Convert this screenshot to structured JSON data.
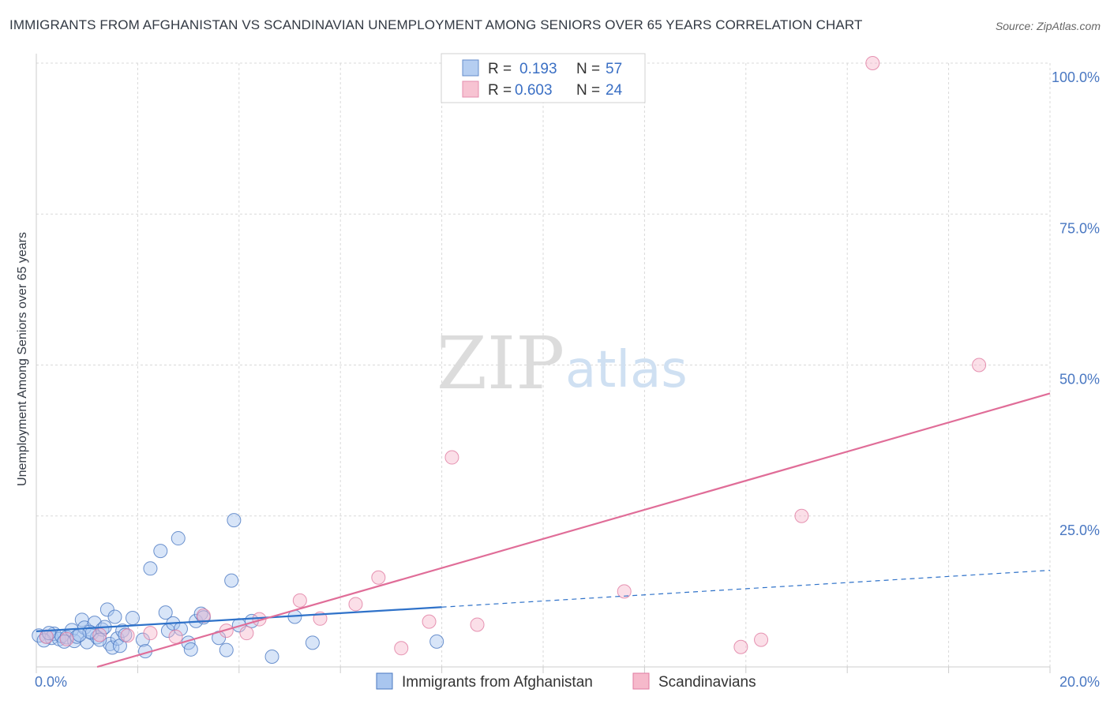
{
  "title": "IMMIGRANTS FROM AFGHANISTAN VS SCANDINAVIAN UNEMPLOYMENT AMONG SENIORS OVER 65 YEARS CORRELATION CHART",
  "source": "Source: ZipAtlas.com",
  "watermark": {
    "zip": "ZIP",
    "atlas": "atlas"
  },
  "colors": {
    "blue": "#4a78c2",
    "blue_fill": "#a9c6ef",
    "blue_line": "#2f72c9",
    "pink": "#e07aa0",
    "pink_fill": "#f6b9cb",
    "pink_line": "#e06d98",
    "grid": "#d9d9d9"
  },
  "legend": {
    "r_label": "R =",
    "n_label": "N =",
    "series": [
      {
        "r": "0.193",
        "n": "57"
      },
      {
        "r": "0.603",
        "n": "24"
      }
    ]
  },
  "chart_data": {
    "type": "scatter",
    "title": "IMMIGRANTS FROM AFGHANISTAN VS SCANDINAVIAN UNEMPLOYMENT AMONG SENIORS OVER 65 YEARS CORRELATION CHART",
    "xlabel": "",
    "ylabel": "Unemployment Among Seniors over 65 years",
    "xlim": [
      0,
      20
    ],
    "ylim": [
      0,
      100
    ],
    "x_ticks": [
      0,
      20
    ],
    "x_tick_labels": [
      "0.0%",
      "20.0%"
    ],
    "y_ticks": [
      25,
      50,
      75,
      100
    ],
    "y_tick_labels": [
      "25.0%",
      "50.0%",
      "75.0%",
      "100.0%"
    ],
    "grid": true,
    "series": [
      {
        "name": "Immigrants from Afghanistan",
        "color": "#4a78c2",
        "points": [
          [
            0.05,
            5.2
          ],
          [
            0.2,
            5.0
          ],
          [
            0.3,
            4.8
          ],
          [
            0.35,
            5.5
          ],
          [
            0.45,
            4.6
          ],
          [
            0.5,
            5.1
          ],
          [
            0.6,
            4.9
          ],
          [
            0.7,
            6.1
          ],
          [
            0.75,
            4.3
          ],
          [
            0.8,
            5.0
          ],
          [
            0.9,
            7.8
          ],
          [
            0.95,
            6.5
          ],
          [
            1.0,
            4.1
          ],
          [
            1.1,
            5.6
          ],
          [
            1.15,
            7.3
          ],
          [
            1.2,
            4.9
          ],
          [
            1.3,
            6.2
          ],
          [
            1.4,
            9.5
          ],
          [
            1.45,
            3.8
          ],
          [
            1.5,
            3.2
          ],
          [
            1.55,
            8.3
          ],
          [
            1.6,
            4.7
          ],
          [
            1.65,
            3.5
          ],
          [
            1.7,
            6.0
          ],
          [
            1.75,
            5.3
          ],
          [
            1.9,
            8.1
          ],
          [
            2.1,
            4.5
          ],
          [
            2.15,
            2.6
          ],
          [
            2.25,
            16.3
          ],
          [
            2.45,
            19.2
          ],
          [
            2.55,
            9.0
          ],
          [
            2.6,
            6.0
          ],
          [
            2.7,
            7.2
          ],
          [
            2.8,
            21.3
          ],
          [
            2.85,
            6.3
          ],
          [
            3.0,
            4.0
          ],
          [
            3.05,
            2.9
          ],
          [
            3.15,
            7.6
          ],
          [
            3.25,
            8.8
          ],
          [
            3.3,
            8.2
          ],
          [
            3.6,
            4.8
          ],
          [
            3.75,
            2.8
          ],
          [
            3.85,
            14.3
          ],
          [
            3.9,
            24.3
          ],
          [
            4.0,
            6.9
          ],
          [
            4.25,
            7.6
          ],
          [
            4.65,
            1.7
          ],
          [
            5.1,
            8.3
          ],
          [
            5.45,
            4.0
          ],
          [
            7.9,
            4.2
          ],
          [
            0.15,
            4.4
          ],
          [
            0.55,
            4.2
          ],
          [
            1.05,
            5.8
          ],
          [
            1.35,
            6.6
          ],
          [
            0.25,
            5.6
          ],
          [
            1.25,
            4.5
          ],
          [
            0.85,
            5.3
          ]
        ]
      },
      {
        "name": "Scandinavians",
        "color": "#e07aa0",
        "points": [
          [
            0.2,
            5.0
          ],
          [
            0.6,
            4.6
          ],
          [
            1.25,
            5.3
          ],
          [
            1.8,
            5.2
          ],
          [
            2.25,
            5.6
          ],
          [
            2.75,
            5.0
          ],
          [
            3.3,
            8.5
          ],
          [
            3.75,
            6.0
          ],
          [
            4.15,
            5.6
          ],
          [
            4.4,
            7.9
          ],
          [
            5.2,
            11.0
          ],
          [
            5.6,
            8.0
          ],
          [
            6.3,
            10.4
          ],
          [
            6.75,
            14.8
          ],
          [
            7.2,
            3.1
          ],
          [
            7.75,
            7.5
          ],
          [
            8.2,
            34.7
          ],
          [
            8.7,
            7.0
          ],
          [
            11.6,
            12.5
          ],
          [
            13.9,
            3.3
          ],
          [
            14.3,
            4.5
          ],
          [
            15.1,
            25.0
          ],
          [
            16.5,
            100.0
          ],
          [
            18.6,
            50.0
          ]
        ]
      }
    ],
    "trendlines": [
      {
        "series": "Immigrants from Afghanistan",
        "solid": [
          [
            0,
            5.9
          ],
          [
            8.0,
            9.9
          ]
        ],
        "dashed": [
          [
            8.0,
            9.9
          ],
          [
            20.0,
            16.0
          ]
        ]
      },
      {
        "series": "Scandinavians",
        "solid": [
          [
            1.2,
            0.0
          ],
          [
            20.0,
            45.3
          ]
        ]
      }
    ]
  }
}
